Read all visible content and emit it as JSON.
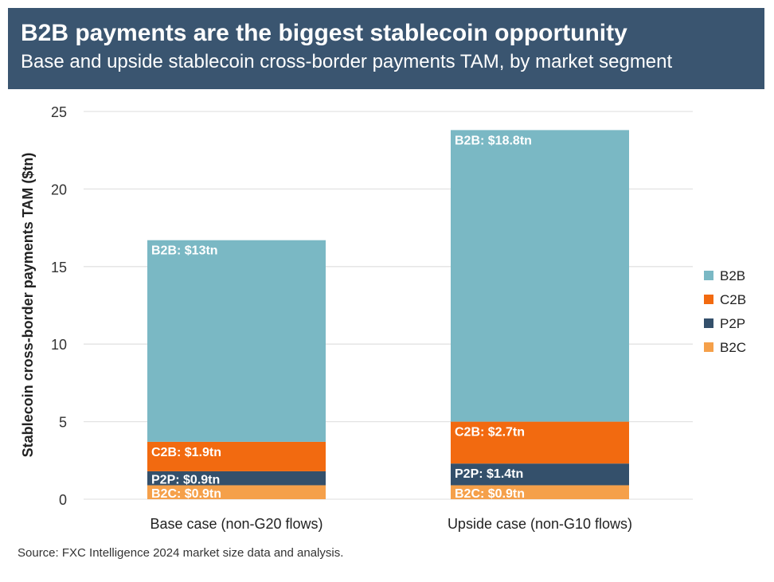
{
  "header": {
    "title": "B2B payments are the biggest stablecoin opportunity",
    "subtitle": "Base and upside stablecoin cross-border payments TAM, by market segment"
  },
  "source": "Source: FXC Intelligence 2024 market size data and analysis.",
  "colors": {
    "header_bg": "#3a5570",
    "B2B": "#7ab8c4",
    "C2B": "#f26a10",
    "P2P": "#34506b",
    "B2C": "#f5a04a",
    "grid": "#e3e3e3"
  },
  "chart_data": {
    "type": "bar",
    "stacked": true,
    "title": "B2B payments are the biggest stablecoin opportunity",
    "subtitle": "Base and upside stablecoin cross-border payments TAM, by market segment",
    "ylabel": "Stablecoin cross-border payments TAM ($tn)",
    "xlabel": "",
    "ylim": [
      0,
      25
    ],
    "yticks": [
      "0",
      "5",
      "10",
      "15",
      "20",
      "25"
    ],
    "grid": true,
    "legend_position": "right",
    "legend": [
      "B2B",
      "C2B",
      "P2P",
      "B2C"
    ],
    "categories": [
      "Base case (non-G20 flows)",
      "Upside case (non-G10 flows)"
    ],
    "series": [
      {
        "name": "B2C",
        "values": [
          0.9,
          0.9
        ],
        "labels": [
          "B2C: $0.9tn",
          "B2C: $0.9tn"
        ]
      },
      {
        "name": "P2P",
        "values": [
          0.9,
          1.4
        ],
        "labels": [
          "P2P: $0.9tn",
          "P2P: $1.4tn"
        ]
      },
      {
        "name": "C2B",
        "values": [
          1.9,
          2.7
        ],
        "labels": [
          "C2B: $1.9tn",
          "C2B: $2.7tn"
        ]
      },
      {
        "name": "B2B",
        "values": [
          13,
          18.8
        ],
        "labels": [
          "B2B: $13tn",
          "B2B: $18.8tn"
        ]
      }
    ]
  }
}
